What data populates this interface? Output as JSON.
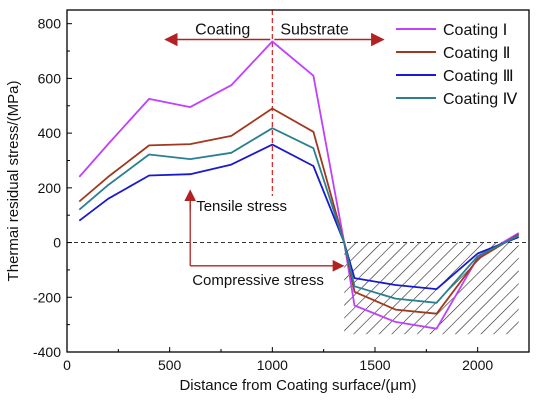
{
  "chart_data": {
    "type": "line",
    "xlabel": "Distance from Coating surface/(μm)",
    "ylabel": "Thermai residual stress/(MPa)",
    "xlim": [
      0,
      2250
    ],
    "ylim": [
      -400,
      850
    ],
    "x_ticks": [
      0,
      500,
      1000,
      1500,
      2000
    ],
    "y_ticks": [
      -400,
      -200,
      0,
      200,
      400,
      600,
      800
    ],
    "x_tick_labels": [
      "0",
      "500",
      "1000",
      "1500",
      "2000"
    ],
    "y_tick_labels": [
      "-400",
      "-200",
      "0",
      "200",
      "400",
      "600",
      "800"
    ],
    "grid": false,
    "legend_position": "top-right",
    "x": [
      60,
      200,
      400,
      600,
      800,
      1000,
      1200,
      1350,
      1400,
      1600,
      1800,
      2000,
      2200
    ],
    "series": [
      {
        "name": "Coating Ⅰ",
        "color": "#c040ff",
        "values": [
          240,
          360,
          525,
          495,
          575,
          735,
          610,
          0,
          -230,
          -290,
          -315,
          -55,
          35
        ]
      },
      {
        "name": "Coating Ⅱ",
        "color": "#a0381e",
        "values": [
          150,
          240,
          355,
          360,
          390,
          490,
          405,
          0,
          -180,
          -245,
          -260,
          -60,
          30
        ]
      },
      {
        "name": "Coating Ⅲ",
        "color": "#1a1acc",
        "values": [
          80,
          160,
          245,
          250,
          285,
          358,
          280,
          0,
          -130,
          -155,
          -170,
          -40,
          20
        ]
      },
      {
        "name": "Coating Ⅳ",
        "color": "#2a8090",
        "values": [
          120,
          210,
          322,
          305,
          328,
          418,
          345,
          0,
          -160,
          -205,
          -220,
          -50,
          25
        ]
      }
    ],
    "annotations": {
      "coating": "Coating",
      "substrate": "Substrate",
      "tensile": "Tensile stress",
      "compressive": "Compressive stress",
      "divider_x": 1000,
      "zero_line_y": 0,
      "hatch_region": {
        "x_min": 1350,
        "x_max": 2200,
        "y_min": -335,
        "y_max": 0
      }
    }
  }
}
